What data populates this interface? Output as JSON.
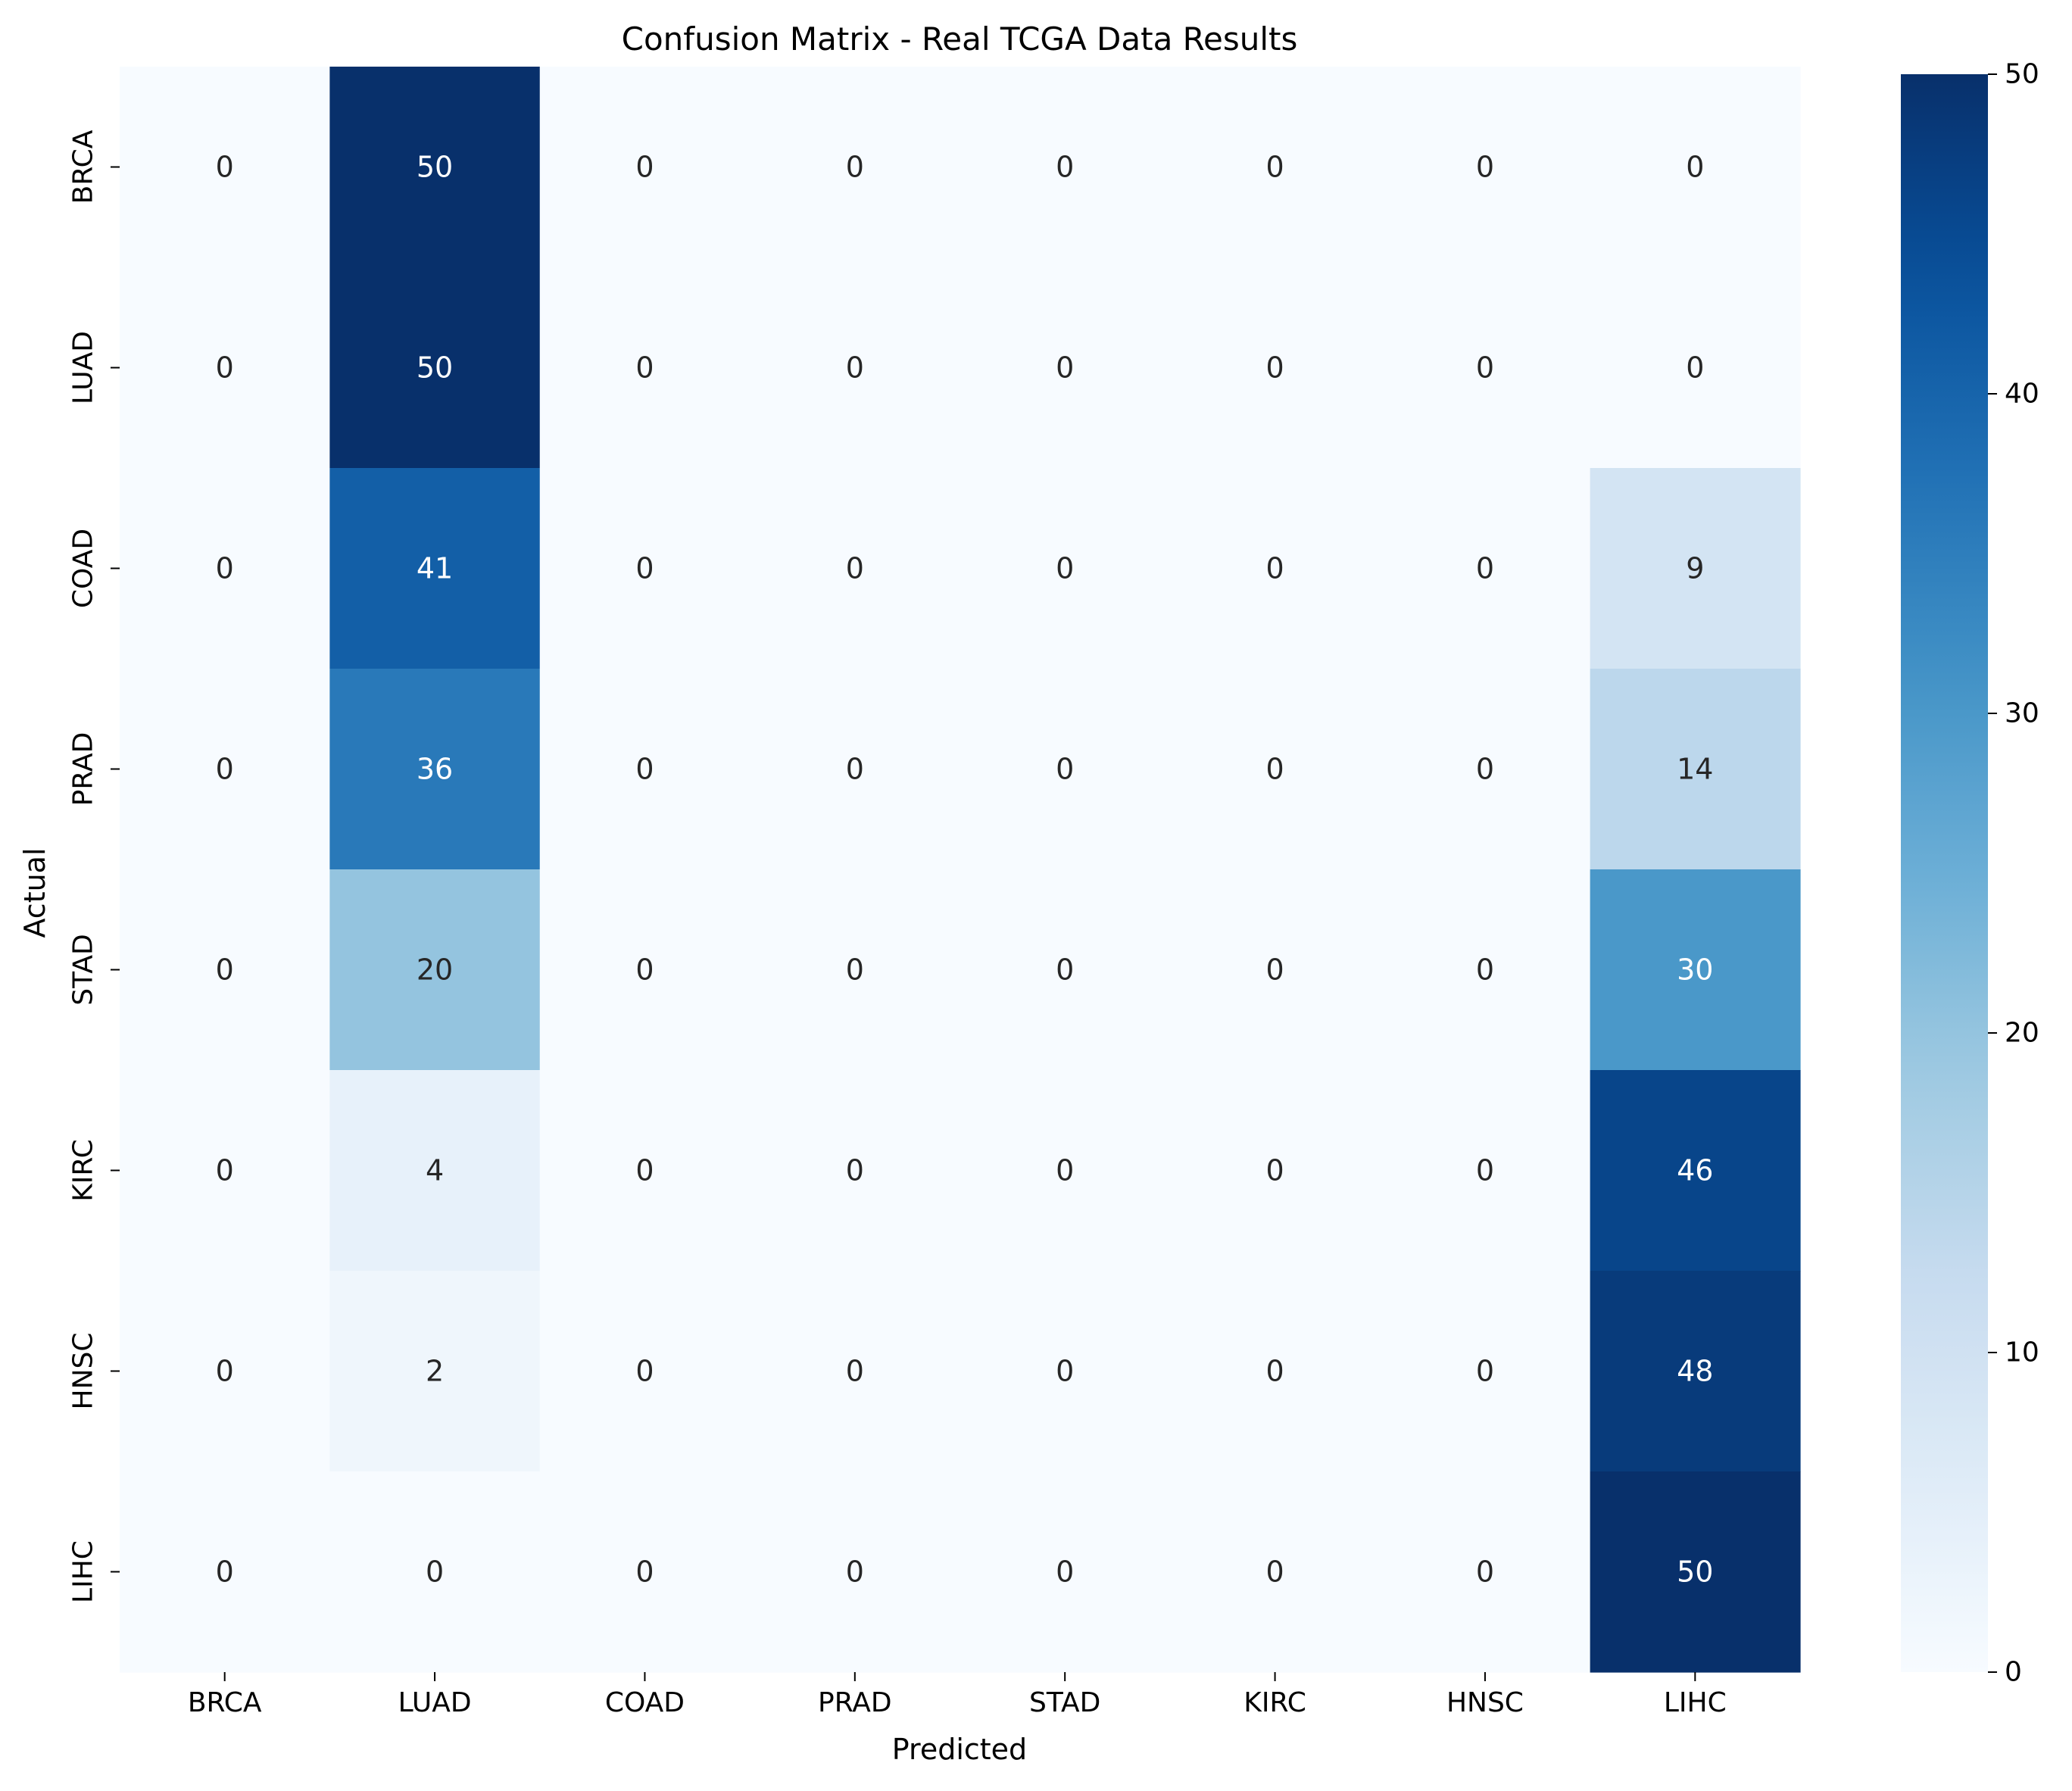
{
  "chart_data": {
    "type": "heatmap",
    "title": "Confusion Matrix - Real TCGA Data Results",
    "xlabel": "Predicted",
    "ylabel": "Actual",
    "x_categories": [
      "BRCA",
      "LUAD",
      "COAD",
      "PRAD",
      "STAD",
      "KIRC",
      "HNSC",
      "LIHC"
    ],
    "y_categories": [
      "BRCA",
      "LUAD",
      "COAD",
      "PRAD",
      "STAD",
      "KIRC",
      "HNSC",
      "LIHC"
    ],
    "values": [
      [
        0,
        50,
        0,
        0,
        0,
        0,
        0,
        0
      ],
      [
        0,
        50,
        0,
        0,
        0,
        0,
        0,
        0
      ],
      [
        0,
        41,
        0,
        0,
        0,
        0,
        0,
        9
      ],
      [
        0,
        36,
        0,
        0,
        0,
        0,
        0,
        14
      ],
      [
        0,
        20,
        0,
        0,
        0,
        0,
        0,
        30
      ],
      [
        0,
        4,
        0,
        0,
        0,
        0,
        0,
        46
      ],
      [
        0,
        2,
        0,
        0,
        0,
        0,
        0,
        48
      ],
      [
        0,
        0,
        0,
        0,
        0,
        0,
        0,
        50
      ]
    ],
    "colormap": "Blues",
    "color_low": "#f7fbff",
    "color_high": "#08306b",
    "colorbar": {
      "range": [
        0,
        50
      ],
      "ticks": [
        0,
        10,
        20,
        30,
        40,
        50
      ]
    }
  }
}
